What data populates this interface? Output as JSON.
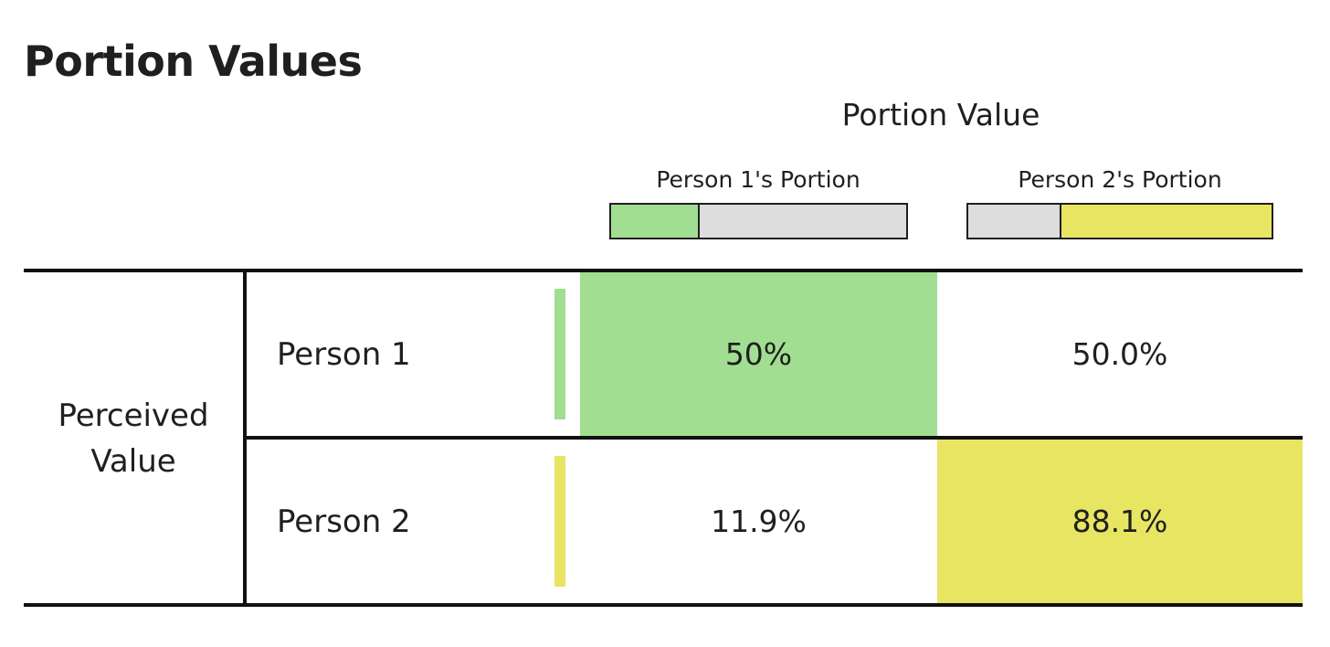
{
  "title": "Portion Values",
  "header": {
    "group": "Portion Value",
    "columns": [
      {
        "label": "Person 1's Portion",
        "bar_fraction": 0.3
      },
      {
        "label": "Person 2's Portion",
        "bar_fraction": 0.7
      }
    ]
  },
  "row_group_label": "Perceived Value",
  "rows": [
    {
      "label": "Person 1",
      "cells": [
        "50%",
        "50.0%"
      ],
      "highlight_col": 0
    },
    {
      "label": "Person 2",
      "cells": [
        "11.9%",
        "88.1%"
      ],
      "highlight_col": 1
    }
  ],
  "colors": {
    "person1": "#a1de91",
    "person2": "#e8e562",
    "empty": "#dddddd"
  }
}
